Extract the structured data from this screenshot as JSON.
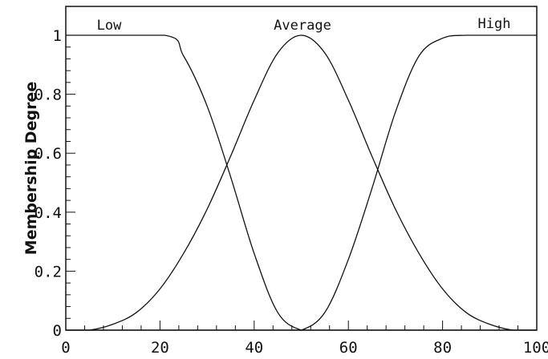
{
  "chart_data": {
    "type": "line",
    "title": "",
    "xlabel": "",
    "ylabel": "Membership Degree",
    "xlim": [
      0,
      100
    ],
    "ylim": [
      0,
      1.05
    ],
    "x_ticks": [
      "0",
      "20",
      "40",
      "60",
      "80",
      "100"
    ],
    "y_ticks": [
      "0",
      "0.2",
      "0.4",
      "0.6",
      "0.8",
      "1"
    ],
    "grid": false,
    "legend": "none",
    "series": [
      {
        "name": "Low",
        "x": [
          0,
          21,
          25,
          30,
          35,
          40,
          45,
          50,
          55,
          60,
          65,
          70,
          75,
          80,
          85,
          90,
          95,
          100
        ],
        "y": [
          1,
          1,
          0.93,
          0.76,
          0.52,
          0.26,
          0.06,
          0,
          0,
          0,
          0,
          0,
          0,
          0,
          0,
          0,
          0,
          0
        ]
      },
      {
        "name": "Average",
        "x": [
          0,
          5,
          10,
          15,
          20,
          25,
          30,
          35,
          40,
          45,
          50,
          55,
          60,
          65,
          70,
          75,
          80,
          85,
          90,
          95,
          100
        ],
        "y": [
          0,
          0,
          0.02,
          0.06,
          0.14,
          0.26,
          0.41,
          0.59,
          0.78,
          0.94,
          1,
          0.94,
          0.78,
          0.59,
          0.41,
          0.26,
          0.14,
          0.06,
          0.02,
          0,
          0
        ]
      },
      {
        "name": "High",
        "x": [
          0,
          5,
          10,
          15,
          20,
          25,
          30,
          35,
          40,
          45,
          50,
          55,
          60,
          65,
          70,
          75,
          80,
          85,
          100
        ],
        "y": [
          0,
          0,
          0,
          0,
          0,
          0,
          0,
          0,
          0,
          0,
          0,
          0.06,
          0.24,
          0.48,
          0.74,
          0.93,
          0.99,
          1,
          1
        ]
      }
    ]
  }
}
